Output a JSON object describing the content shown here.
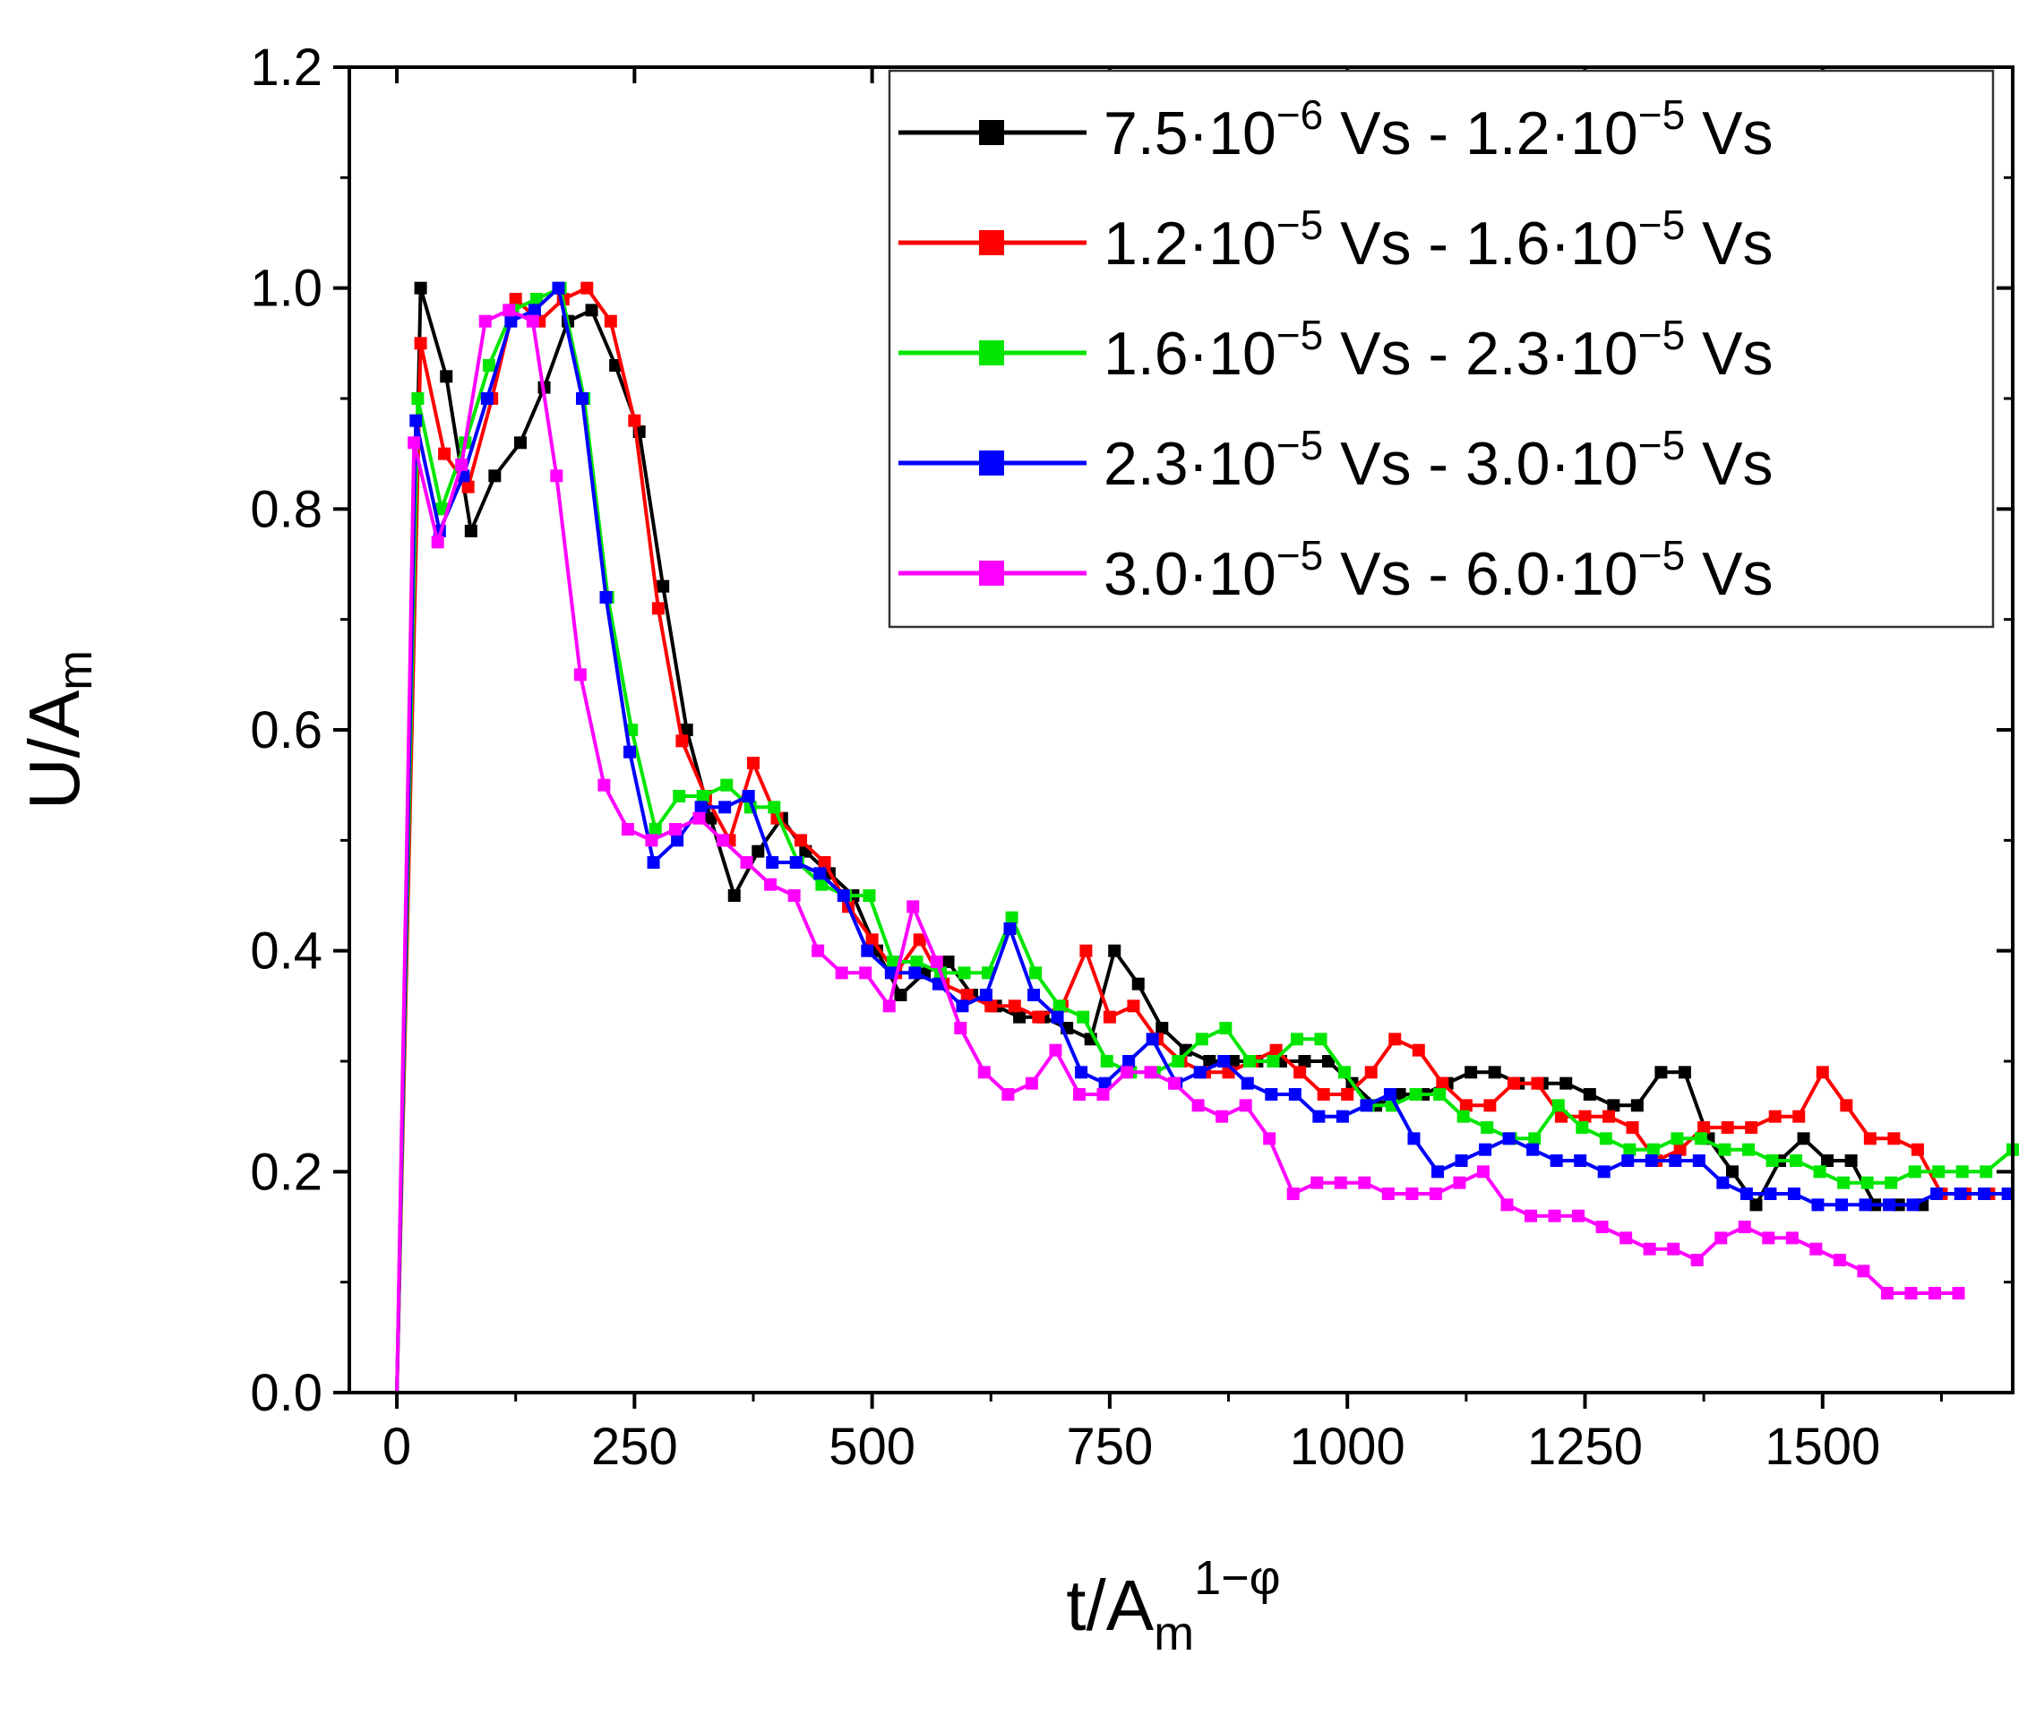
{
  "chart_data": {
    "type": "line",
    "xlabel": {
      "base": "t/A",
      "sub": "m",
      "sup": "1−φ"
    },
    "ylabel": {
      "base": "U/A",
      "sub": "m"
    },
    "xlim": [
      -50,
      1700
    ],
    "ylim": [
      0,
      1.2
    ],
    "xticks": [
      0,
      250,
      500,
      750,
      1000,
      1250,
      1500
    ],
    "xtick_labels": [
      "0",
      "250",
      "500",
      "750",
      "1000",
      "1250",
      "1500"
    ],
    "yticks": [
      0,
      0.2,
      0.4,
      0.6,
      0.8,
      1.0,
      1.2
    ],
    "ytick_labels": [
      "0.0",
      "0.2",
      "0.4",
      "0.6",
      "0.8",
      "1.0",
      "1.2"
    ],
    "legend_position": "top-right",
    "series": [
      {
        "name": "7.5·10^-6 Vs - 1.2·10^-5 Vs",
        "label": {
          "a": "7.5·10",
          "ae": "−6",
          "b": " Vs - 1.2·10",
          "be": "−5",
          "c": " Vs"
        },
        "color": "#000000",
        "x": [
          0,
          25,
          52,
          78,
          103,
          130,
          155,
          180,
          205,
          230,
          255,
          280,
          305,
          330,
          355,
          380,
          405,
          430,
          455,
          480,
          505,
          530,
          555,
          580,
          605,
          630,
          655,
          680,
          705,
          730,
          755,
          780,
          805,
          830,
          855,
          880,
          905,
          930,
          955,
          980,
          1005,
          1030,
          1055,
          1080,
          1105,
          1130,
          1155,
          1180,
          1205,
          1230,
          1255,
          1280,
          1305,
          1330,
          1355,
          1380,
          1405,
          1430,
          1455,
          1480,
          1505,
          1530,
          1555,
          1580,
          1605
        ],
        "y": [
          0,
          1.0,
          0.92,
          0.78,
          0.83,
          0.86,
          0.91,
          0.97,
          0.98,
          0.93,
          0.87,
          0.73,
          0.6,
          0.52,
          0.45,
          0.49,
          0.52,
          0.49,
          0.47,
          0.45,
          0.4,
          0.36,
          0.38,
          0.39,
          0.36,
          0.35,
          0.34,
          0.34,
          0.33,
          0.32,
          0.4,
          0.37,
          0.33,
          0.31,
          0.3,
          0.3,
          0.3,
          0.3,
          0.3,
          0.3,
          0.28,
          0.26,
          0.27,
          0.27,
          0.28,
          0.29,
          0.29,
          0.28,
          0.28,
          0.28,
          0.27,
          0.26,
          0.26,
          0.29,
          0.29,
          0.23,
          0.2,
          0.17,
          0.21,
          0.23,
          0.21,
          0.21,
          0.17,
          0.17,
          0.17
        ]
      },
      {
        "name": "1.2·10^-5 Vs - 1.6·10^-5 Vs",
        "label": {
          "a": "1.2·10",
          "ae": "−5",
          "b": " Vs - 1.6·10",
          "be": "−5",
          "c": " Vs"
        },
        "color": "#ff0000",
        "x": [
          0,
          25,
          50,
          75,
          100,
          125,
          150,
          175,
          200,
          225,
          250,
          275,
          300,
          325,
          350,
          375,
          400,
          425,
          450,
          475,
          500,
          525,
          550,
          575,
          600,
          625,
          650,
          675,
          700,
          725,
          750,
          775,
          800,
          825,
          850,
          875,
          900,
          925,
          950,
          975,
          1000,
          1025,
          1050,
          1075,
          1100,
          1125,
          1150,
          1175,
          1200,
          1225,
          1250,
          1275,
          1300,
          1325,
          1350,
          1375,
          1400,
          1425,
          1450,
          1475,
          1500,
          1525,
          1550,
          1575,
          1600,
          1625,
          1650,
          1675
        ],
        "y": [
          0,
          0.95,
          0.85,
          0.82,
          0.9,
          0.99,
          0.97,
          0.99,
          1.0,
          0.97,
          0.88,
          0.71,
          0.59,
          0.54,
          0.5,
          0.57,
          0.52,
          0.5,
          0.48,
          0.44,
          0.41,
          0.38,
          0.41,
          0.37,
          0.36,
          0.35,
          0.35,
          0.34,
          0.35,
          0.4,
          0.34,
          0.35,
          0.32,
          0.3,
          0.29,
          0.29,
          0.3,
          0.31,
          0.29,
          0.27,
          0.27,
          0.29,
          0.32,
          0.31,
          0.28,
          0.26,
          0.26,
          0.28,
          0.28,
          0.25,
          0.25,
          0.25,
          0.24,
          0.21,
          0.22,
          0.24,
          0.24,
          0.24,
          0.25,
          0.25,
          0.29,
          0.26,
          0.23,
          0.23,
          0.22,
          0.18,
          0.18,
          0.18
        ]
      },
      {
        "name": "1.6·10^-5 Vs - 2.3·10^-5 Vs",
        "label": {
          "a": "1.6·10",
          "ae": "−5",
          "b": " Vs - 2.3·10",
          "be": "−5",
          "c": " Vs"
        },
        "color": "#00e600",
        "x": [
          0,
          22,
          47,
          72,
          97,
          122,
          147,
          172,
          197,
          222,
          247,
          272,
          297,
          322,
          347,
          372,
          397,
          422,
          447,
          472,
          497,
          522,
          547,
          572,
          597,
          622,
          647,
          672,
          697,
          722,
          747,
          772,
          797,
          822,
          847,
          872,
          897,
          922,
          947,
          972,
          997,
          1022,
          1047,
          1072,
          1097,
          1122,
          1147,
          1172,
          1197,
          1222,
          1247,
          1272,
          1297,
          1322,
          1347,
          1372,
          1397,
          1422,
          1447,
          1472,
          1497,
          1522,
          1547,
          1572,
          1597,
          1622,
          1647,
          1672,
          1700
        ],
        "y": [
          0,
          0.9,
          0.8,
          0.86,
          0.93,
          0.98,
          0.99,
          1.0,
          0.9,
          0.72,
          0.6,
          0.51,
          0.54,
          0.54,
          0.55,
          0.53,
          0.53,
          0.48,
          0.46,
          0.45,
          0.45,
          0.39,
          0.39,
          0.38,
          0.38,
          0.38,
          0.43,
          0.38,
          0.35,
          0.34,
          0.3,
          0.29,
          0.29,
          0.3,
          0.32,
          0.33,
          0.3,
          0.3,
          0.32,
          0.32,
          0.29,
          0.26,
          0.26,
          0.27,
          0.27,
          0.25,
          0.24,
          0.23,
          0.23,
          0.26,
          0.24,
          0.23,
          0.22,
          0.22,
          0.23,
          0.23,
          0.22,
          0.22,
          0.21,
          0.21,
          0.2,
          0.19,
          0.19,
          0.19,
          0.2,
          0.2,
          0.2,
          0.2,
          0.22
        ]
      },
      {
        "name": "2.3·10^-5 Vs - 3.0·10^-5 Vs",
        "label": {
          "a": "2.3·10",
          "ae": "−5",
          "b": " Vs - 3.0·10",
          "be": "−5",
          "c": " Vs"
        },
        "color": "#0000ff",
        "x": [
          0,
          20,
          45,
          70,
          95,
          120,
          145,
          170,
          195,
          220,
          245,
          270,
          295,
          320,
          345,
          370,
          395,
          420,
          445,
          470,
          495,
          520,
          545,
          570,
          595,
          620,
          645,
          670,
          695,
          720,
          745,
          770,
          795,
          820,
          845,
          870,
          895,
          920,
          945,
          970,
          995,
          1020,
          1045,
          1070,
          1095,
          1120,
          1145,
          1170,
          1195,
          1220,
          1245,
          1270,
          1295,
          1320,
          1345,
          1370,
          1395,
          1420,
          1445,
          1470,
          1495,
          1520,
          1545,
          1570,
          1595,
          1620,
          1645,
          1670,
          1695
        ],
        "y": [
          0,
          0.88,
          0.78,
          0.83,
          0.9,
          0.97,
          0.98,
          1.0,
          0.9,
          0.72,
          0.58,
          0.48,
          0.5,
          0.53,
          0.53,
          0.54,
          0.48,
          0.48,
          0.47,
          0.45,
          0.4,
          0.38,
          0.38,
          0.37,
          0.35,
          0.36,
          0.42,
          0.36,
          0.34,
          0.29,
          0.28,
          0.3,
          0.32,
          0.28,
          0.29,
          0.3,
          0.28,
          0.27,
          0.27,
          0.25,
          0.25,
          0.26,
          0.27,
          0.23,
          0.2,
          0.21,
          0.22,
          0.23,
          0.22,
          0.21,
          0.21,
          0.2,
          0.21,
          0.21,
          0.21,
          0.21,
          0.19,
          0.18,
          0.18,
          0.18,
          0.17,
          0.17,
          0.17,
          0.17,
          0.17,
          0.18,
          0.18,
          0.18,
          0.18
        ]
      },
      {
        "name": "3.0·10^-5 Vs - 6.0·10^-5 Vs",
        "label": {
          "a": "3.0·10",
          "ae": "−5",
          "b": " Vs - 6.0·10",
          "be": "−5",
          "c": " Vs"
        },
        "color": "#ff00ff",
        "x": [
          0,
          18,
          43,
          68,
          93,
          118,
          143,
          168,
          193,
          218,
          243,
          268,
          293,
          318,
          343,
          368,
          393,
          418,
          443,
          468,
          493,
          518,
          543,
          568,
          593,
          618,
          643,
          668,
          693,
          718,
          743,
          768,
          793,
          818,
          843,
          868,
          893,
          918,
          943,
          968,
          993,
          1018,
          1043,
          1068,
          1093,
          1118,
          1143,
          1168,
          1193,
          1218,
          1243,
          1268,
          1293,
          1318,
          1343,
          1368,
          1393,
          1418,
          1443,
          1468,
          1493,
          1518,
          1543,
          1568,
          1593,
          1618,
          1643
        ],
        "y": [
          0,
          0.86,
          0.77,
          0.84,
          0.97,
          0.98,
          0.97,
          0.83,
          0.65,
          0.55,
          0.51,
          0.5,
          0.51,
          0.52,
          0.5,
          0.48,
          0.46,
          0.45,
          0.4,
          0.38,
          0.38,
          0.35,
          0.44,
          0.39,
          0.33,
          0.29,
          0.27,
          0.28,
          0.31,
          0.27,
          0.27,
          0.29,
          0.29,
          0.28,
          0.26,
          0.25,
          0.26,
          0.23,
          0.18,
          0.19,
          0.19,
          0.19,
          0.18,
          0.18,
          0.18,
          0.19,
          0.2,
          0.17,
          0.16,
          0.16,
          0.16,
          0.15,
          0.14,
          0.13,
          0.13,
          0.12,
          0.14,
          0.15,
          0.14,
          0.14,
          0.13,
          0.12,
          0.11,
          0.09,
          0.09,
          0.09,
          0.09
        ]
      }
    ]
  }
}
